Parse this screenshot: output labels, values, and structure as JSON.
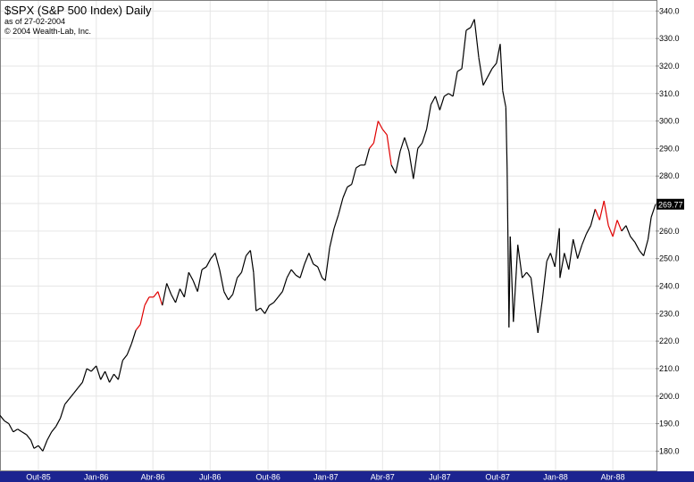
{
  "header": {
    "title": "$SPX (S&P 500 Index) Daily",
    "as_of": "as of 27-02-2004",
    "copyright": "© 2004 Wealth-Lab, Inc."
  },
  "colors": {
    "price_line": "#000000",
    "highlight_line": "#e00000",
    "grid": "#e6e6e6",
    "axis_bar": "#1c2490",
    "last_label_bg": "#000000"
  },
  "chart_data": {
    "type": "line",
    "title": "$SPX (S&P 500 Index) Daily",
    "xlabel": "",
    "ylabel": "",
    "ylim": [
      173,
      344
    ],
    "xlim": [
      "1985-08-01",
      "1988-06-08"
    ],
    "y_ticks": [
      180,
      190,
      200,
      210,
      220,
      230,
      240,
      250,
      260,
      270,
      280,
      290,
      300,
      310,
      320,
      330,
      340
    ],
    "x_ticks": [
      {
        "date": "1985-10-01",
        "label": "Out-85"
      },
      {
        "date": "1986-01-01",
        "label": "Jan-86"
      },
      {
        "date": "1986-04-01",
        "label": "Abr-86"
      },
      {
        "date": "1986-07-01",
        "label": "Jul-86"
      },
      {
        "date": "1986-10-01",
        "label": "Out-86"
      },
      {
        "date": "1987-01-01",
        "label": "Jan-87"
      },
      {
        "date": "1987-04-01",
        "label": "Abr-87"
      },
      {
        "date": "1987-07-01",
        "label": "Jul-87"
      },
      {
        "date": "1987-10-01",
        "label": "Out-87"
      },
      {
        "date": "1988-01-01",
        "label": "Jan-88"
      },
      {
        "date": "1988-04-01",
        "label": "Abr-88"
      }
    ],
    "grid": true,
    "last_value_label": "269.77",
    "series": [
      {
        "values": [
          [
            "1985-08-01",
            193
          ],
          [
            "1985-08-08",
            191
          ],
          [
            "1985-08-15",
            190
          ],
          [
            "1985-08-22",
            187
          ],
          [
            "1985-08-29",
            188
          ],
          [
            "1985-09-05",
            187
          ],
          [
            "1985-09-12",
            186
          ],
          [
            "1985-09-19",
            184
          ],
          [
            "1985-09-24",
            181
          ],
          [
            "1985-10-01",
            182
          ],
          [
            "1985-10-08",
            180
          ],
          [
            "1985-10-15",
            184
          ],
          [
            "1985-10-22",
            187
          ],
          [
            "1985-10-29",
            189
          ],
          [
            "1985-11-05",
            192
          ],
          [
            "1985-11-12",
            197
          ],
          [
            "1985-11-19",
            199
          ],
          [
            "1985-11-26",
            201
          ],
          [
            "1985-12-03",
            203
          ],
          [
            "1985-12-10",
            205
          ],
          [
            "1985-12-17",
            210
          ],
          [
            "1985-12-24",
            209
          ],
          [
            "1986-01-01",
            211
          ],
          [
            "1986-01-08",
            206
          ],
          [
            "1986-01-15",
            209
          ],
          [
            "1986-01-22",
            205
          ],
          [
            "1986-01-29",
            208
          ],
          [
            "1986-02-05",
            206
          ],
          [
            "1986-02-12",
            213
          ],
          [
            "1986-02-19",
            215
          ],
          [
            "1986-02-26",
            219
          ],
          [
            "1986-03-05",
            224
          ],
          [
            "1986-03-12",
            226
          ],
          [
            "1986-03-19",
            233
          ],
          [
            "1986-03-26",
            236
          ],
          [
            "1986-04-02",
            236
          ],
          [
            "1986-04-09",
            238
          ],
          [
            "1986-04-16",
            233
          ],
          [
            "1986-04-23",
            241
          ],
          [
            "1986-04-30",
            237
          ],
          [
            "1986-05-07",
            234
          ],
          [
            "1986-05-14",
            239
          ],
          [
            "1986-05-21",
            236
          ],
          [
            "1986-05-28",
            245
          ],
          [
            "1986-06-04",
            242
          ],
          [
            "1986-06-11",
            238
          ],
          [
            "1986-06-18",
            246
          ],
          [
            "1986-06-25",
            247
          ],
          [
            "1986-07-02",
            250
          ],
          [
            "1986-07-09",
            252
          ],
          [
            "1986-07-16",
            246
          ],
          [
            "1986-07-23",
            238
          ],
          [
            "1986-07-30",
            235
          ],
          [
            "1986-08-06",
            237
          ],
          [
            "1986-08-13",
            243
          ],
          [
            "1986-08-20",
            245
          ],
          [
            "1986-08-27",
            251
          ],
          [
            "1986-09-03",
            253
          ],
          [
            "1986-09-08",
            245
          ],
          [
            "1986-09-12",
            231
          ],
          [
            "1986-09-19",
            232
          ],
          [
            "1986-09-26",
            230
          ],
          [
            "1986-10-03",
            233
          ],
          [
            "1986-10-10",
            234
          ],
          [
            "1986-10-17",
            236
          ],
          [
            "1986-10-24",
            238
          ],
          [
            "1986-10-31",
            243
          ],
          [
            "1986-11-07",
            246
          ],
          [
            "1986-11-14",
            244
          ],
          [
            "1986-11-21",
            243
          ],
          [
            "1986-11-28",
            248
          ],
          [
            "1986-12-05",
            252
          ],
          [
            "1986-12-12",
            248
          ],
          [
            "1986-12-19",
            247
          ],
          [
            "1986-12-26",
            243
          ],
          [
            "1986-12-31",
            242
          ],
          [
            "1987-01-07",
            254
          ],
          [
            "1987-01-14",
            261
          ],
          [
            "1987-01-21",
            266
          ],
          [
            "1987-01-28",
            272
          ],
          [
            "1987-02-04",
            276
          ],
          [
            "1987-02-11",
            277
          ],
          [
            "1987-02-18",
            283
          ],
          [
            "1987-02-25",
            284
          ],
          [
            "1987-03-04",
            284
          ],
          [
            "1987-03-11",
            290
          ],
          [
            "1987-03-18",
            292
          ],
          [
            "1987-03-25",
            300
          ],
          [
            "1987-04-01",
            297
          ],
          [
            "1987-04-08",
            295
          ],
          [
            "1987-04-15",
            284
          ],
          [
            "1987-04-22",
            281
          ],
          [
            "1987-04-29",
            289
          ],
          [
            "1987-05-06",
            294
          ],
          [
            "1987-05-13",
            289
          ],
          [
            "1987-05-20",
            279
          ],
          [
            "1987-05-27",
            290
          ],
          [
            "1987-06-03",
            292
          ],
          [
            "1987-06-10",
            297
          ],
          [
            "1987-06-17",
            306
          ],
          [
            "1987-06-24",
            309
          ],
          [
            "1987-07-01",
            304
          ],
          [
            "1987-07-08",
            309
          ],
          [
            "1987-07-15",
            310
          ],
          [
            "1987-07-22",
            309
          ],
          [
            "1987-07-29",
            318
          ],
          [
            "1987-08-05",
            319
          ],
          [
            "1987-08-12",
            333
          ],
          [
            "1987-08-19",
            334
          ],
          [
            "1987-08-25",
            337
          ],
          [
            "1987-09-01",
            323
          ],
          [
            "1987-09-08",
            313
          ],
          [
            "1987-09-15",
            316
          ],
          [
            "1987-09-22",
            319
          ],
          [
            "1987-09-29",
            321
          ],
          [
            "1987-10-05",
            328
          ],
          [
            "1987-10-09",
            311
          ],
          [
            "1987-10-14",
            305
          ],
          [
            "1987-10-16",
            283
          ],
          [
            "1987-10-19",
            225
          ],
          [
            "1987-10-21",
            258
          ],
          [
            "1987-10-26",
            227
          ],
          [
            "1987-11-02",
            255
          ],
          [
            "1987-11-09",
            243
          ],
          [
            "1987-11-16",
            245
          ],
          [
            "1987-11-23",
            243
          ],
          [
            "1987-11-30",
            230
          ],
          [
            "1987-12-04",
            223
          ],
          [
            "1987-12-11",
            235
          ],
          [
            "1987-12-18",
            249
          ],
          [
            "1987-12-24",
            252
          ],
          [
            "1987-12-31",
            247
          ],
          [
            "1988-01-07",
            261
          ],
          [
            "1988-01-08",
            243
          ],
          [
            "1988-01-15",
            252
          ],
          [
            "1988-01-22",
            246
          ],
          [
            "1988-01-29",
            257
          ],
          [
            "1988-02-05",
            250
          ],
          [
            "1988-02-12",
            255
          ],
          [
            "1988-02-19",
            259
          ],
          [
            "1988-02-26",
            262
          ],
          [
            "1988-03-04",
            268
          ],
          [
            "1988-03-11",
            264
          ],
          [
            "1988-03-18",
            271
          ],
          [
            "1988-03-25",
            262
          ],
          [
            "1988-04-01",
            258
          ],
          [
            "1988-04-08",
            264
          ],
          [
            "1988-04-15",
            260
          ],
          [
            "1988-04-22",
            262
          ],
          [
            "1988-04-29",
            258
          ],
          [
            "1988-05-06",
            256
          ],
          [
            "1988-05-13",
            253
          ],
          [
            "1988-05-20",
            251
          ],
          [
            "1988-05-27",
            257
          ],
          [
            "1988-06-01",
            265
          ],
          [
            "1988-06-08",
            269.77
          ]
        ]
      }
    ],
    "highlight_segments": [
      [
        "1986-03-05",
        "1986-04-16"
      ],
      [
        "1987-03-11",
        "1987-04-15"
      ],
      [
        "1988-03-04",
        "1988-04-15"
      ]
    ]
  }
}
